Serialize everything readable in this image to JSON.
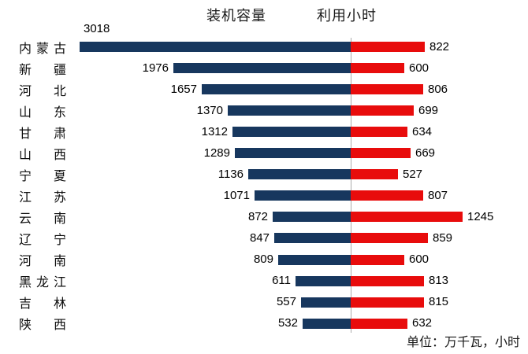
{
  "header": {
    "left_series_title": "装机容量",
    "right_series_title": "利用小时"
  },
  "footer": {
    "unit_note": "单位：万千瓦，小时"
  },
  "colors": {
    "capacity_bar": "#17375E",
    "hours_bar": "#E80C0C",
    "divider": "#ABABAB",
    "text": "#000000"
  },
  "chart_data": {
    "type": "bar",
    "orientation": "horizontal-diverging",
    "title": "",
    "xlabel": "",
    "ylabel": "",
    "unit": "万千瓦，小时",
    "legend_position": "top",
    "grid": false,
    "categories": [
      "内蒙古",
      "新疆",
      "河北",
      "山东",
      "甘肃",
      "山西",
      "宁夏",
      "江苏",
      "云南",
      "辽宁",
      "河南",
      "黑龙江",
      "吉林",
      "陕西"
    ],
    "series": [
      {
        "name": "装机容量",
        "direction": "left",
        "values": [
          3018,
          1976,
          1657,
          1370,
          1312,
          1289,
          1136,
          1071,
          872,
          847,
          809,
          611,
          557,
          532
        ]
      },
      {
        "name": "利用小时",
        "direction": "right",
        "values": [
          822,
          600,
          806,
          699,
          634,
          669,
          527,
          807,
          1245,
          859,
          600,
          813,
          815,
          632
        ]
      }
    ],
    "value_axis_range": [
      0,
      3100
    ]
  }
}
